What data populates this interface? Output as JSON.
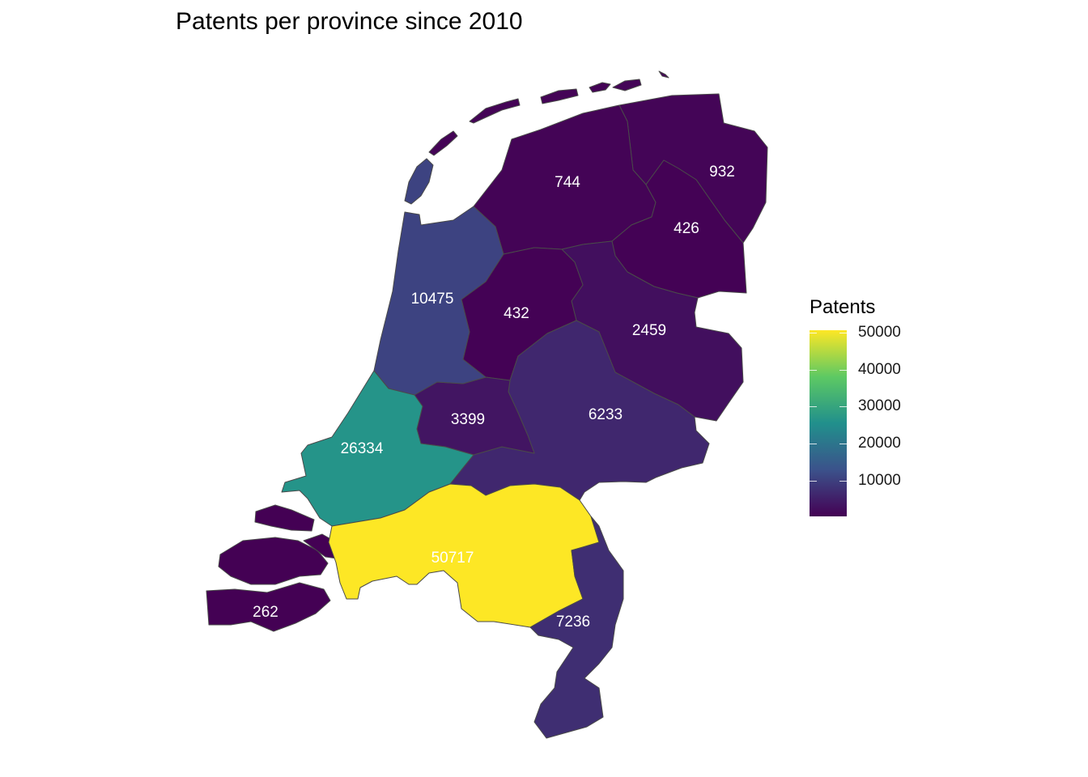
{
  "title": "Patents per province since 2010",
  "legend": {
    "title": "Patents",
    "min": 262,
    "max": 50717,
    "ticks": [
      "10000",
      "20000",
      "30000",
      "40000",
      "50000"
    ],
    "palette": [
      "#440154",
      "#3B528B",
      "#21908C",
      "#5DC963",
      "#FDE725"
    ]
  },
  "chart_data": {
    "type": "choropleth",
    "title": "Patents per province since 2010",
    "legend_title": "Patents",
    "legend_placement": "right",
    "color_scale": "viridis",
    "regions": [
      {
        "key": "groningen",
        "value": 932
      },
      {
        "key": "friesland",
        "value": 744
      },
      {
        "key": "drenthe",
        "value": 426
      },
      {
        "key": "overijssel",
        "value": 2459
      },
      {
        "key": "flevoland",
        "value": 432
      },
      {
        "key": "gelderland",
        "value": 6233
      },
      {
        "key": "utrecht",
        "value": 3399
      },
      {
        "key": "noord-holland",
        "value": 10475
      },
      {
        "key": "zuid-holland",
        "value": 26334
      },
      {
        "key": "zeeland",
        "value": 262
      },
      {
        "key": "noord-brabant",
        "value": 50717
      },
      {
        "key": "limburg",
        "value": 7236
      }
    ],
    "labels": [
      "932",
      "744",
      "426",
      "2459",
      "432",
      "6233",
      "3399",
      "10475",
      "26334",
      "262",
      "50717",
      "7236"
    ]
  }
}
